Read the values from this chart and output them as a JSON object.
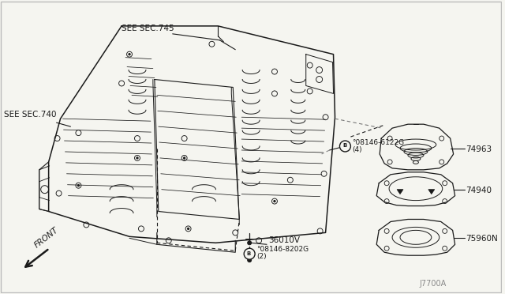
{
  "bg_color": "#f5f5f0",
  "line_color": "#1a1a1a",
  "figsize": [
    6.4,
    3.72
  ],
  "dpi": 100,
  "labels": {
    "see_sec_745": "SEE SEC.745",
    "see_sec_740": "SEE SEC.740",
    "front": "FRONT",
    "part_36010v": "36010V",
    "part_08146_8202g": "°08146-8202G",
    "part_08146_8202g_qty": "(2)",
    "part_08146_6122g": "°08146-6122G",
    "part_08146_6122g_qty": "(4)",
    "part_74963": "74963",
    "part_74940": "74940",
    "part_75960n": "75960N",
    "ref_num": "J7700A"
  }
}
